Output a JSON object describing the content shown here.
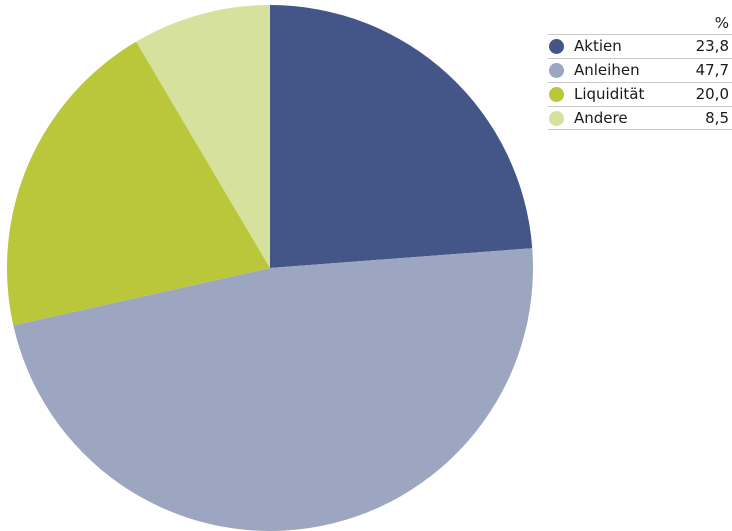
{
  "chart_data": {
    "type": "pie",
    "value_unit": "%",
    "slices": [
      {
        "label": "Aktien",
        "value": 23.8,
        "value_text": "23,8",
        "color": "#445588"
      },
      {
        "label": "Anleihen",
        "value": 47.7,
        "value_text": "47,7",
        "color": "#9da6c0"
      },
      {
        "label": "Liquidität",
        "value": 20.0,
        "value_text": "20,0",
        "color": "#bac73a"
      },
      {
        "label": "Andere",
        "value": 8.5,
        "value_text": "8,5",
        "color": "#d7e19e"
      }
    ],
    "start_angle_deg": 0,
    "direction": "clockwise",
    "legend_position": "top-right"
  }
}
